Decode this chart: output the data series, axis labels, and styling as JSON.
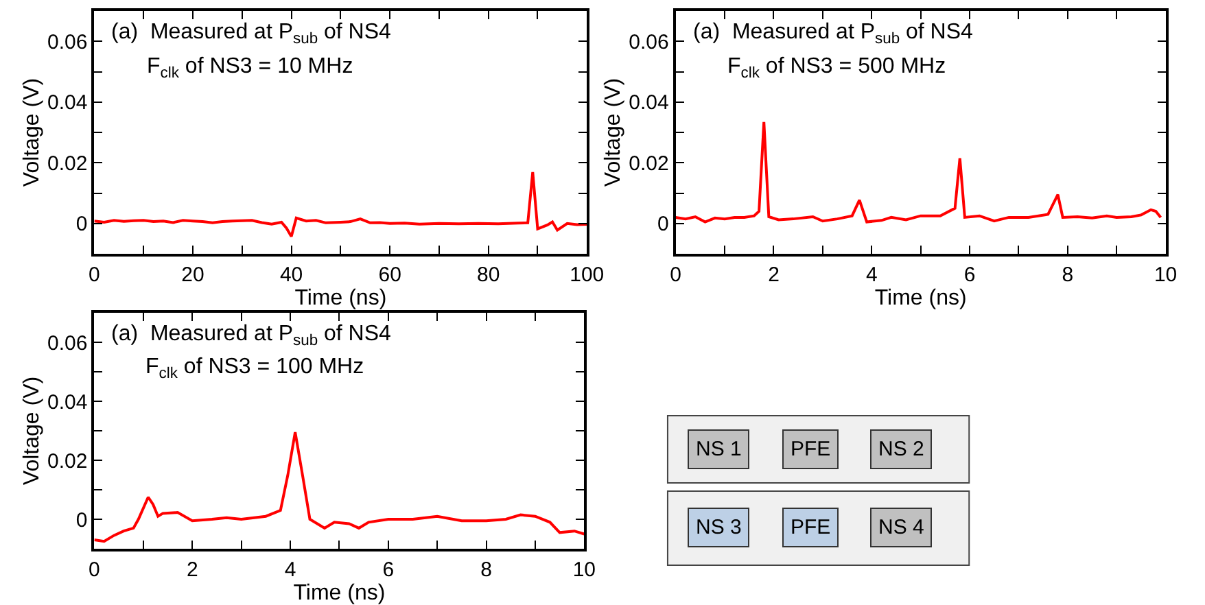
{
  "chart_data": [
    {
      "type": "line",
      "xlabel": "Time (ns)",
      "ylabel": "Voltage (V)",
      "annotations": [
        "(a)  Measured at P$_{sub}$ of NS4",
        "F$_{clk}$ of NS3 = 10 MHz"
      ],
      "series": [
        {
          "color": "#ff0000",
          "x": [
            0,
            2,
            4,
            6,
            8,
            10,
            12,
            14,
            16,
            18,
            20,
            22,
            24,
            26,
            28,
            30,
            32,
            34,
            36,
            38,
            39,
            40,
            41,
            43,
            45,
            47,
            50,
            52,
            54,
            56,
            58,
            60,
            63,
            66,
            70,
            74,
            78,
            82,
            84,
            86,
            88,
            89,
            90,
            92,
            93,
            94,
            96,
            98,
            100
          ],
          "values": [
            0.0008,
            0.0004,
            0.001,
            0.0007,
            0.0009,
            0.001,
            0.0006,
            0.0008,
            0.0003,
            0.001,
            0.0008,
            0.0006,
            0.0002,
            0.0006,
            0.0008,
            0.0009,
            0.001,
            0.0003,
            -0.0002,
            0.0004,
            -0.0015,
            -0.0043,
            0.0018,
            0.0008,
            0.001,
            0.0002,
            0.0004,
            0.0006,
            0.0015,
            0.0002,
            0.0003,
            0.0,
            0.0001,
            -0.0002,
            0.0,
            -0.0001,
            0.0,
            -0.0001,
            0.0,
            0.0001,
            0.0002,
            0.0169,
            -0.0018,
            -0.0005,
            0.0005,
            -0.0022,
            0.0,
            -0.0004,
            -0.0003
          ]
        }
      ],
      "xlim": [
        0,
        100
      ],
      "xticks": [
        0,
        {
          "value": 10,
          "label": null
        },
        20,
        {
          "value": 30,
          "label": null
        },
        40,
        {
          "value": 50,
          "label": null
        },
        60,
        {
          "value": 70,
          "label": null
        },
        80,
        {
          "value": 90,
          "label": null
        },
        100
      ],
      "ylim": [
        -0.01,
        0.07
      ],
      "yticks": [
        0,
        {
          "value": 0.01,
          "label": null
        },
        0.02,
        {
          "value": 0.03,
          "label": null
        },
        0.04,
        {
          "value": 0.05,
          "label": null
        },
        0.06
      ],
      "marker": "none",
      "line_style": "solid"
    },
    {
      "type": "line",
      "xlabel": "Time (ns)",
      "ylabel": "Voltage (V)",
      "annotations": [
        "(a)  Measured at P$_{sub}$ of NS4",
        "F$_{clk}$ of NS3 = 500 MHz"
      ],
      "series": [
        {
          "color": "#ff0000",
          "x": [
            0,
            0.2,
            0.4,
            0.6,
            0.8,
            1.0,
            1.2,
            1.4,
            1.6,
            1.7,
            1.8,
            1.9,
            2.1,
            2.4,
            2.8,
            3.0,
            3.3,
            3.6,
            3.75,
            3.9,
            4.2,
            4.4,
            4.7,
            5.0,
            5.4,
            5.7,
            5.8,
            5.9,
            6.2,
            6.5,
            6.8,
            7.2,
            7.6,
            7.8,
            7.9,
            8.2,
            8.5,
            8.8,
            9.0,
            9.3,
            9.5,
            9.7,
            9.8,
            9.9
          ],
          "values": [
            0.002,
            0.0015,
            0.0022,
            0.0005,
            0.0018,
            0.0015,
            0.002,
            0.002,
            0.0025,
            0.004,
            0.0334,
            0.0022,
            0.0012,
            0.0015,
            0.0022,
            0.0008,
            0.0015,
            0.0025,
            0.0077,
            0.0005,
            0.001,
            0.002,
            0.0012,
            0.0025,
            0.0025,
            0.005,
            0.0215,
            0.002,
            0.0025,
            0.0008,
            0.002,
            0.002,
            0.003,
            0.0095,
            0.002,
            0.0022,
            0.0018,
            0.0025,
            0.002,
            0.0022,
            0.0028,
            0.0045,
            0.004,
            0.002
          ]
        }
      ],
      "xlim": [
        0,
        10
      ],
      "xticks": [
        0,
        {
          "value": 1,
          "label": null
        },
        2,
        {
          "value": 3,
          "label": null
        },
        4,
        {
          "value": 5,
          "label": null
        },
        6,
        {
          "value": 7,
          "label": null
        },
        8,
        {
          "value": 9,
          "label": null
        },
        10
      ],
      "ylim": [
        -0.01,
        0.07
      ],
      "yticks": [
        0,
        {
          "value": 0.01,
          "label": null
        },
        0.02,
        {
          "value": 0.03,
          "label": null
        },
        0.04,
        {
          "value": 0.05,
          "label": null
        },
        0.06
      ],
      "marker": "none",
      "line_style": "solid"
    },
    {
      "type": "line",
      "xlabel": "Time (ns)",
      "ylabel": "Voltage (V)",
      "annotations": [
        "(a)  Measured at P$_{sub}$ of NS4",
        "F$_{clk}$ of NS3 = 100 MHz"
      ],
      "series": [
        {
          "color": "#ff0000",
          "x": [
            0,
            0.2,
            0.4,
            0.6,
            0.8,
            0.9,
            1.1,
            1.2,
            1.3,
            1.4,
            1.7,
            2.0,
            2.4,
            2.7,
            3.0,
            3.5,
            3.8,
            3.95,
            4.1,
            4.25,
            4.4,
            4.7,
            4.9,
            5.2,
            5.4,
            5.6,
            6.0,
            6.5,
            7.0,
            7.5,
            8.0,
            8.4,
            8.7,
            9.0,
            9.3,
            9.5,
            9.8,
            10
          ],
          "values": [
            -0.007,
            -0.0075,
            -0.0055,
            -0.004,
            -0.003,
            0.0,
            0.0075,
            0.005,
            0.001,
            0.002,
            0.0023,
            -0.0005,
            0.0,
            0.0005,
            0.0,
            0.001,
            0.003,
            0.015,
            0.0295,
            0.015,
            0.0,
            -0.003,
            -0.001,
            -0.0015,
            -0.003,
            -0.001,
            0.0,
            0.0,
            0.001,
            -0.0005,
            -0.0005,
            0.0,
            0.0015,
            0.001,
            -0.001,
            -0.0045,
            -0.004,
            -0.005
          ]
        }
      ],
      "xlim": [
        0,
        10
      ],
      "xticks": [
        0,
        {
          "value": 1,
          "label": null
        },
        2,
        {
          "value": 3,
          "label": null
        },
        4,
        {
          "value": 5,
          "label": null
        },
        6,
        {
          "value": 7,
          "label": null
        },
        8,
        {
          "value": 9,
          "label": null
        },
        10
      ],
      "ylim": [
        -0.01,
        0.07
      ],
      "yticks": [
        0,
        {
          "value": 0.01,
          "label": null
        },
        0.02,
        {
          "value": 0.03,
          "label": null
        },
        0.04,
        {
          "value": 0.05,
          "label": null
        },
        0.06
      ],
      "marker": "none",
      "line_style": "solid"
    },
    {
      "type": "other",
      "annotations": [
        "NS 1",
        "PFE",
        "NS 2",
        "NS 3",
        "PFE",
        "NS 4"
      ]
    }
  ]
}
